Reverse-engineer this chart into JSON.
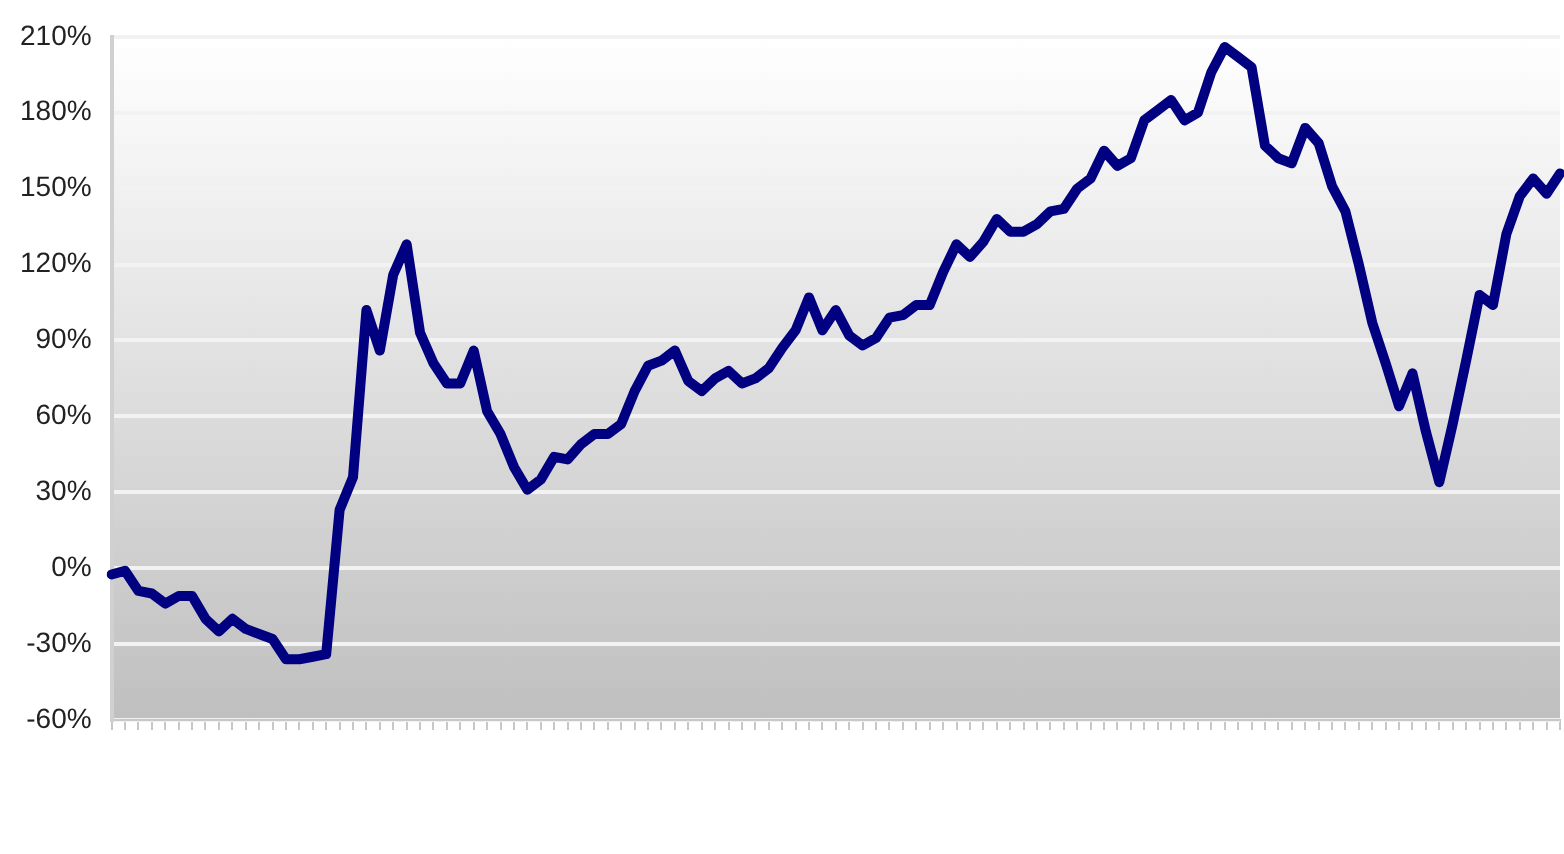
{
  "chart_data": {
    "type": "line",
    "categories": [
      null,
      null,
      null,
      null,
      null,
      null,
      null,
      null,
      null,
      null,
      null,
      null,
      null,
      null,
      null,
      null,
      null,
      null,
      null,
      null,
      null,
      null,
      null,
      null,
      null,
      null,
      null,
      null,
      null,
      null,
      null,
      null,
      null,
      null,
      null,
      null,
      null,
      null,
      null,
      null,
      null,
      null,
      null,
      null,
      null,
      null,
      null,
      null,
      null,
      null,
      null,
      null,
      null,
      null,
      null,
      null,
      null,
      null,
      null,
      null,
      null,
      null,
      null,
      null,
      null,
      null,
      null,
      null,
      null,
      null,
      null,
      null,
      null,
      null,
      null,
      null,
      null,
      null,
      null,
      null,
      null,
      null,
      null,
      null,
      null,
      null,
      null,
      null,
      null,
      null,
      null,
      null,
      null,
      null,
      null,
      null,
      null,
      null,
      null,
      null,
      null,
      null,
      null,
      null,
      null,
      null,
      null,
      null,
      null
    ],
    "series": [
      {
        "color": "#000080",
        "values": [
          -2.5,
          -1,
          -9,
          -10,
          -14,
          -11,
          -11,
          -20,
          -25,
          -20,
          -24,
          -26,
          -28,
          -36,
          -36,
          -35,
          -34,
          23,
          36,
          102,
          86,
          116,
          128,
          93,
          81,
          73,
          73,
          86,
          62,
          53,
          40,
          31,
          35,
          44,
          43,
          49,
          53,
          53,
          57,
          70,
          80,
          82,
          86,
          74,
          70,
          75,
          78,
          73,
          75,
          79,
          87,
          94,
          107,
          94,
          102,
          92,
          88,
          91,
          99,
          100,
          104,
          104,
          117,
          128,
          123,
          129,
          138,
          133,
          133,
          136,
          141,
          142,
          150,
          154,
          165,
          159,
          162,
          177,
          181,
          185,
          177,
          180,
          196,
          206,
          202,
          198,
          167,
          162,
          160,
          174,
          168,
          151,
          141,
          120,
          97,
          81,
          64,
          77,
          54,
          34,
          57,
          82,
          108,
          104,
          132,
          147,
          154,
          148,
          156
        ]
      }
    ],
    "ylim": [
      -60,
      210
    ],
    "yticks": [
      {
        "value": -60,
        "label": "-60%"
      },
      {
        "value": -30,
        "label": "-30%"
      },
      {
        "value": 0,
        "label": "0%"
      },
      {
        "value": 30,
        "label": "30%"
      },
      {
        "value": 60,
        "label": "60%"
      },
      {
        "value": 90,
        "label": "90%"
      },
      {
        "value": 120,
        "label": "120%"
      },
      {
        "value": 150,
        "label": "150%"
      },
      {
        "value": 180,
        "label": "180%"
      },
      {
        "value": 210,
        "label": "210%"
      }
    ],
    "grid": "y",
    "legend": false,
    "marker": "none",
    "line_style": "solid",
    "tick_labels": "y"
  }
}
